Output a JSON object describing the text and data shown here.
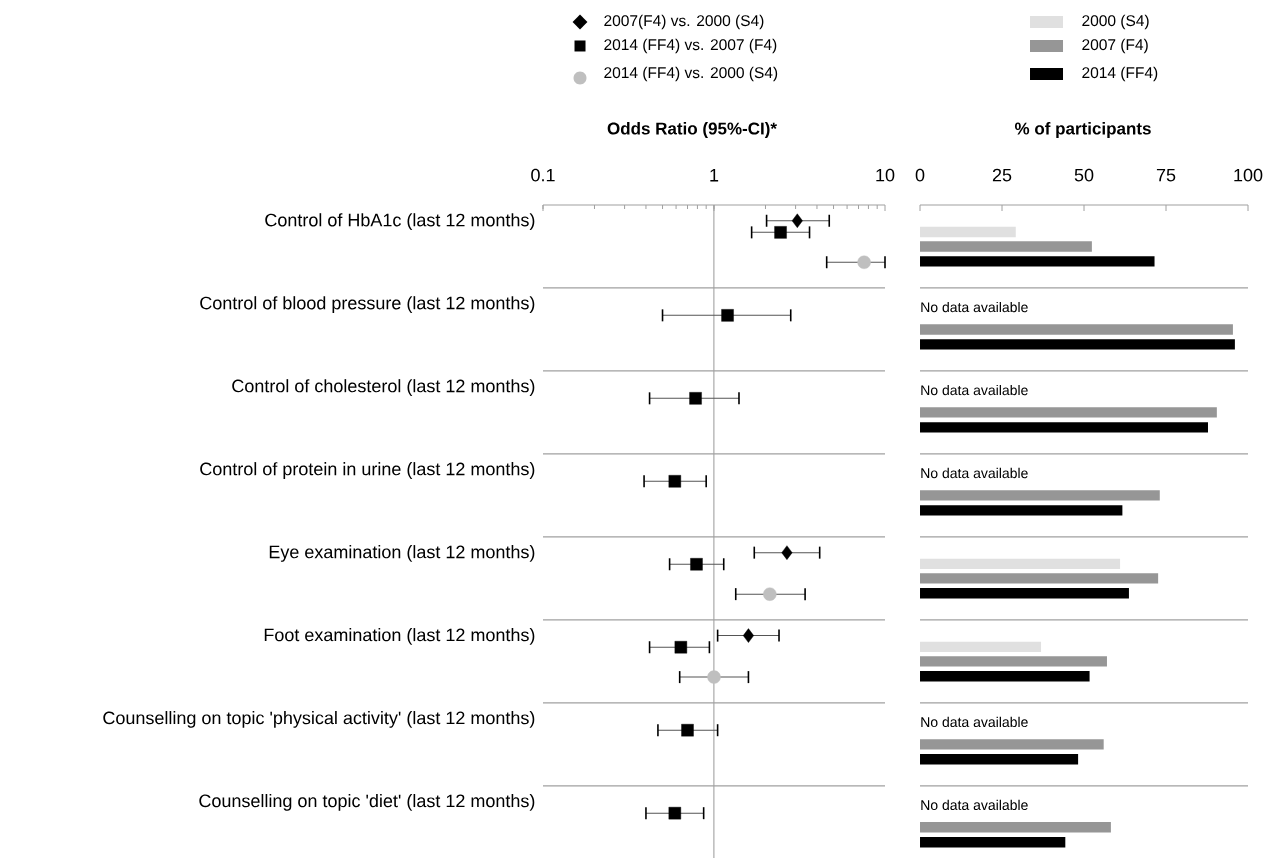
{
  "chart_data": [
    {
      "type": "scatter",
      "title": "Odds Ratio (95%-CI)*",
      "orientation": "horizontal",
      "log": "x",
      "xlim": [
        0.1,
        10
      ],
      "xticks": [
        0.1,
        1,
        10
      ],
      "grid": "y",
      "legend": "top",
      "categories": [
        "Control of HbA1c (last 12 months)",
        "Control of blood pressure (last 12 months)",
        "Control of cholesterol (last 12 months)",
        "Control of protein in urine (last 12 months)",
        "Eye examination (last 12 months)",
        "Foot examination (last 12 months)",
        "Counselling on topic 'physical activity'  (last 12 months)",
        "Counselling on topic 'diet'  (last 12 months)"
      ],
      "ref_lines": [
        {
          "axis": "x",
          "value": 1,
          "color": "#a0a0a0"
        }
      ],
      "series": [
        {
          "name": "2007(F4)  vs. 2000 (S4)",
          "color": "#000000",
          "marker": "diamond",
          "values": [
            3.07,
            null,
            null,
            null,
            2.67,
            1.59,
            null,
            null
          ],
          "errors": [
            [
              2.03,
              4.72
            ],
            null,
            null,
            null,
            [
              1.72,
              4.15
            ],
            [
              1.05,
              2.4
            ],
            null,
            null
          ]
        },
        {
          "name": "2014 (FF4)  vs. 2007 (F4)",
          "color": "#000000",
          "marker": "square",
          "values": [
            2.45,
            1.2,
            0.78,
            0.59,
            0.79,
            0.64,
            0.7,
            0.59
          ],
          "errors": [
            [
              1.66,
              3.62
            ],
            [
              0.5,
              2.81
            ],
            [
              0.42,
              1.4
            ],
            [
              0.39,
              0.9
            ],
            [
              0.55,
              1.14
            ],
            [
              0.42,
              0.94
            ],
            [
              0.47,
              1.05
            ],
            [
              0.4,
              0.87
            ]
          ]
        },
        {
          "name": "2014 (FF4) vs. 2000 (S4)",
          "color": "#bfbfbf",
          "marker": "circle",
          "values": [
            7.55,
            null,
            null,
            null,
            2.12,
            1.0,
            null,
            null
          ],
          "errors": [
            [
              4.56,
              10
            ],
            null,
            null,
            null,
            [
              1.34,
              3.41
            ],
            [
              0.63,
              1.59
            ],
            null,
            null
          ]
        }
      ]
    },
    {
      "type": "bar",
      "title": "% of participants",
      "orientation": "horizontal",
      "xlim": [
        0,
        100
      ],
      "xticks": [
        0,
        25,
        50,
        75,
        100
      ],
      "grid": "y",
      "legend": "top",
      "categories": [
        null,
        null,
        null,
        null,
        null,
        null,
        null,
        null
      ],
      "annotations": [
        "No data available",
        "No data available",
        "No data available",
        "No data available",
        "No data available"
      ],
      "series": [
        {
          "name": "2000 (S4)",
          "color": "#e0e0e0",
          "values": [
            29.2,
            null,
            null,
            null,
            61.0,
            36.9,
            null,
            null
          ]
        },
        {
          "name": "2007 (F4)",
          "color": "#969696",
          "values": [
            52.4,
            95.4,
            90.5,
            73.1,
            72.6,
            57.0,
            56.0,
            58.2
          ]
        },
        {
          "name": "2014 (FF4)",
          "color": "#000000",
          "values": [
            71.5,
            96.0,
            87.8,
            61.7,
            63.7,
            51.7,
            48.2,
            44.3
          ]
        }
      ]
    }
  ]
}
